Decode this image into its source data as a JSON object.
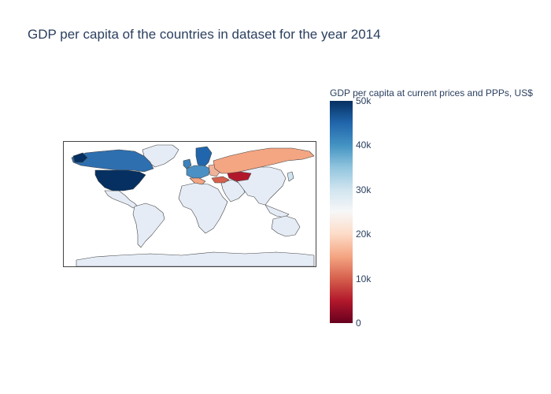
{
  "title": "GDP per capita of the countries in dataset for the year 2014",
  "colorbar": {
    "title": "GDP per capita at current prices and PPPs, US$",
    "min": 0,
    "max": 50000,
    "ticks": [
      {
        "value": 0,
        "label": "0"
      },
      {
        "value": 10000,
        "label": "10k"
      },
      {
        "value": 20000,
        "label": "20k"
      },
      {
        "value": 30000,
        "label": "30k"
      },
      {
        "value": 40000,
        "label": "40k"
      },
      {
        "value": 50000,
        "label": "50k"
      }
    ],
    "colorscale": [
      "#67001f",
      "#b2182b",
      "#d6604d",
      "#f4a582",
      "#fddbc7",
      "#f7f7f7",
      "#d1e5f0",
      "#92c5de",
      "#4393c3",
      "#2166ac",
      "#053061"
    ]
  },
  "map": {
    "projection": "equirectangular",
    "no_data_color": "#e5ecf6",
    "border_color": "#444444"
  }
}
